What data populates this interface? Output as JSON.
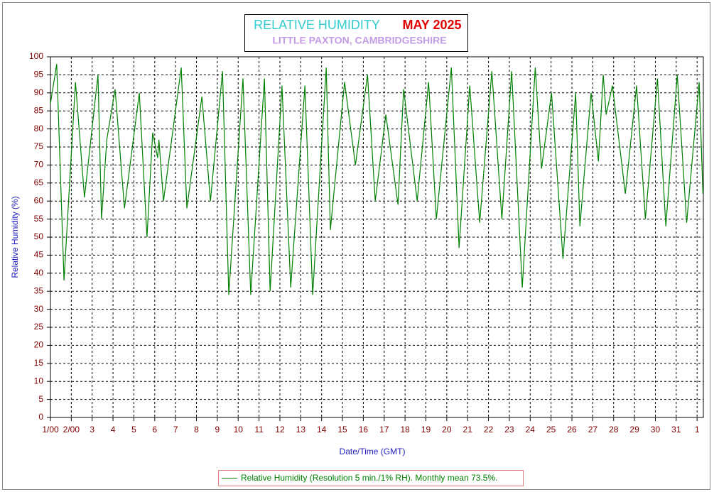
{
  "chart_data": {
    "type": "line",
    "title": "RELATIVE HUMIDITY",
    "title_date": "MAY 2025",
    "subtitle": "LITTLE PAXTON, CAMBRIDGESHIRE",
    "ylabel": "Relative Humidity (%)",
    "xlabel": "Date/Time (GMT)",
    "x": [
      0,
      0.3,
      0.65,
      1.2,
      1.63,
      2.28,
      2.45,
      2.7,
      3.1,
      3.55,
      4.26,
      4.63,
      4.9,
      5.14,
      5.2,
      5.42,
      6.27,
      6.54,
      7.26,
      7.67,
      8.25,
      8.55,
      9.23,
      9.6,
      10.26,
      10.53,
      11.1,
      11.52,
      12.2,
      12.57,
      13.22,
      13.42,
      14.1,
      14.62,
      15.2,
      15.57,
      16.08,
      16.66,
      16.93,
      17.58,
      18.13,
      18.5,
      19.22,
      19.59,
      20.1,
      20.58,
      21.16,
      21.64,
      22.11,
      22.62,
      23.24,
      23.54,
      24.02,
      24.57,
      25.18,
      25.38,
      25.92,
      26.27,
      26.5,
      26.64,
      26.94,
      27.56,
      28.1,
      28.52,
      29.1,
      29.5,
      30.05,
      30.5,
      31.1,
      31.28
    ],
    "series": [
      {
        "name": "Relative Humidity (Resolution 5 min./1% RH). Monthly mean 73.5%.",
        "color": "#008000",
        "values": [
          87,
          98,
          38,
          93,
          61,
          95,
          55,
          77,
          91,
          58,
          90,
          50,
          79,
          72,
          77,
          60,
          97,
          58,
          89,
          60,
          96,
          34,
          94,
          34,
          94,
          35,
          92,
          36,
          92,
          34,
          97,
          52,
          93,
          70,
          95,
          60,
          84,
          59,
          91,
          60,
          93,
          55,
          97,
          47,
          92,
          54,
          96,
          55,
          96,
          36,
          97,
          69,
          90,
          44,
          90,
          53,
          90,
          71,
          95,
          84,
          92,
          62,
          92,
          55,
          94,
          53,
          95,
          54,
          93,
          62
        ]
      }
    ],
    "xlim": [
      0,
      31.3
    ],
    "ylim": [
      0,
      100
    ],
    "xticks": [
      {
        "value": 0,
        "label": "1/00"
      },
      {
        "value": 1,
        "label": "2/00"
      },
      {
        "value": 2,
        "label": "3"
      },
      {
        "value": 3,
        "label": "4"
      },
      {
        "value": 4,
        "label": "5"
      },
      {
        "value": 5,
        "label": "6"
      },
      {
        "value": 6,
        "label": "7"
      },
      {
        "value": 7,
        "label": "8"
      },
      {
        "value": 8,
        "label": "9"
      },
      {
        "value": 9,
        "label": "10"
      },
      {
        "value": 10,
        "label": "11"
      },
      {
        "value": 11,
        "label": "12"
      },
      {
        "value": 12,
        "label": "13"
      },
      {
        "value": 13,
        "label": "14"
      },
      {
        "value": 14,
        "label": "15"
      },
      {
        "value": 15,
        "label": "16"
      },
      {
        "value": 16,
        "label": "17"
      },
      {
        "value": 17,
        "label": "18"
      },
      {
        "value": 18,
        "label": "19"
      },
      {
        "value": 19,
        "label": "20"
      },
      {
        "value": 20,
        "label": "21"
      },
      {
        "value": 21,
        "label": "22"
      },
      {
        "value": 22,
        "label": "23"
      },
      {
        "value": 23,
        "label": "24"
      },
      {
        "value": 24,
        "label": "25"
      },
      {
        "value": 25,
        "label": "26"
      },
      {
        "value": 26,
        "label": "27"
      },
      {
        "value": 27,
        "label": "28"
      },
      {
        "value": 28,
        "label": "29"
      },
      {
        "value": 29,
        "label": "30"
      },
      {
        "value": 30,
        "label": "31"
      },
      {
        "value": 31,
        "label": "1"
      }
    ],
    "yticks": [
      0,
      5,
      10,
      15,
      20,
      25,
      30,
      35,
      40,
      45,
      50,
      55,
      60,
      65,
      70,
      75,
      80,
      85,
      90,
      95,
      100
    ],
    "grid": true
  }
}
